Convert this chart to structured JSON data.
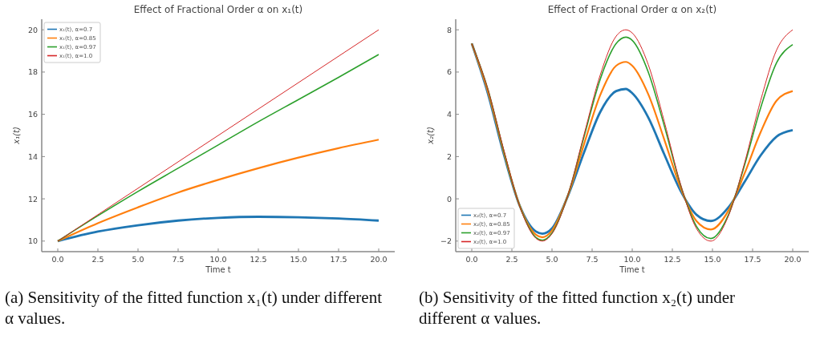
{
  "chart_data": [
    {
      "type": "line",
      "title": "Effect of Fractional Order α on x₁(t)",
      "xlabel": "Time t",
      "ylabel": "x₁(t)",
      "xlim": [
        -1,
        21
      ],
      "ylim": [
        9.5,
        20.5
      ],
      "xticks": [
        {
          "value": 0,
          "label": "0.0"
        },
        {
          "value": 2.5,
          "label": "2.5"
        },
        {
          "value": 5,
          "label": "5.0"
        },
        {
          "value": 7.5,
          "label": "7.5"
        },
        {
          "value": 10,
          "label": "10.0"
        },
        {
          "value": 12.5,
          "label": "12.5"
        },
        {
          "value": 15,
          "label": "15.0"
        },
        {
          "value": 17.5,
          "label": "17.5"
        },
        {
          "value": 20,
          "label": "20.0"
        }
      ],
      "yticks": [
        10,
        12,
        14,
        16,
        18,
        20
      ],
      "grid": false,
      "legend": "top left",
      "x": [
        0,
        2.5,
        5,
        7.5,
        10,
        12.5,
        15,
        17.5,
        20
      ],
      "series": [
        {
          "name": "x₁(t), α=0.7",
          "color": "#1f77b4",
          "values": [
            10,
            10.45,
            10.75,
            10.97,
            11.1,
            11.15,
            11.13,
            11.07,
            10.97
          ]
        },
        {
          "name": "x₁(t), α=0.85",
          "color": "#ff7f0e",
          "values": [
            10,
            10.85,
            11.6,
            12.3,
            12.9,
            13.45,
            13.95,
            14.4,
            14.8
          ]
        },
        {
          "name": "x₁(t), α=0.97",
          "color": "#2ca02c",
          "values": [
            10,
            11.2,
            12.35,
            13.45,
            14.55,
            15.65,
            16.7,
            17.75,
            18.83
          ]
        },
        {
          "name": "x₁(t), α=1.0",
          "color": "#d62728",
          "values": [
            10,
            11.25,
            12.5,
            13.75,
            15,
            16.25,
            17.5,
            18.75,
            20
          ]
        }
      ],
      "annotations": [
        "(a) Sensitivity of the fitted function x₁(t) under different α values."
      ]
    },
    {
      "type": "line",
      "title": "Effect of Fractional Order α on x₂(t)",
      "xlabel": "Time t",
      "ylabel": "x₂(t)",
      "xlim": [
        -1,
        21
      ],
      "ylim": [
        -2.5,
        8.5
      ],
      "xticks": [
        {
          "value": 0,
          "label": "0.0"
        },
        {
          "value": 2.5,
          "label": "2.5"
        },
        {
          "value": 5,
          "label": "5.0"
        },
        {
          "value": 7.5,
          "label": "7.5"
        },
        {
          "value": 10,
          "label": "10.0"
        },
        {
          "value": 12.5,
          "label": "12.5"
        },
        {
          "value": 15,
          "label": "15.0"
        },
        {
          "value": 17.5,
          "label": "17.5"
        },
        {
          "value": 20,
          "label": "20.0"
        }
      ],
      "yticks": [
        {
          "value": -2,
          "label": "−2"
        },
        0,
        2,
        4,
        6,
        8
      ],
      "grid": false,
      "legend": "bottom left",
      "x": [
        0,
        1,
        2,
        3,
        4,
        4.4,
        5,
        6,
        7,
        8,
        9,
        9.6,
        10,
        11,
        12,
        13,
        14,
        14.9,
        16,
        17,
        18,
        19,
        20
      ],
      "series": [
        {
          "name": "x₂(t), α=0.7",
          "color": "#1f77b4",
          "values": [
            7.35,
            5.0,
            2.1,
            -0.35,
            -1.55,
            -1.65,
            -1.4,
            0.15,
            2.2,
            4.1,
            5.1,
            5.2,
            5.0,
            3.85,
            2.1,
            0.4,
            -0.75,
            -1.05,
            -0.4,
            0.8,
            2.05,
            2.95,
            3.25
          ]
        },
        {
          "name": "x₂(t), α=0.85",
          "color": "#ff7f0e",
          "values": [
            7.35,
            5.1,
            2.2,
            -0.35,
            -1.7,
            -1.82,
            -1.5,
            0.18,
            2.6,
            4.9,
            6.3,
            6.48,
            6.3,
            4.95,
            2.8,
            0.55,
            -1.05,
            -1.45,
            -0.55,
            1.2,
            3.15,
            4.65,
            5.1
          ]
        },
        {
          "name": "x₂(t), α=0.97",
          "color": "#2ca02c",
          "values": [
            7.35,
            5.2,
            2.25,
            -0.37,
            -1.83,
            -1.96,
            -1.62,
            0.19,
            2.95,
            5.65,
            7.35,
            7.65,
            7.5,
            6.0,
            3.45,
            0.68,
            -1.3,
            -1.88,
            -0.75,
            1.6,
            4.3,
            6.45,
            7.3
          ]
        },
        {
          "name": "x₂(t), α=1.0",
          "color": "#d62728",
          "values": [
            7.35,
            5.2,
            2.3,
            -0.38,
            -1.87,
            -2.0,
            -1.65,
            0.2,
            3.05,
            5.85,
            7.7,
            8.0,
            7.85,
            6.35,
            3.65,
            0.72,
            -1.4,
            -2.0,
            -0.8,
            1.7,
            4.65,
            7.05,
            8.0
          ]
        }
      ],
      "annotations": [
        "(b) Sensitivity of the fitted function x₂(t) under different α values."
      ]
    }
  ]
}
